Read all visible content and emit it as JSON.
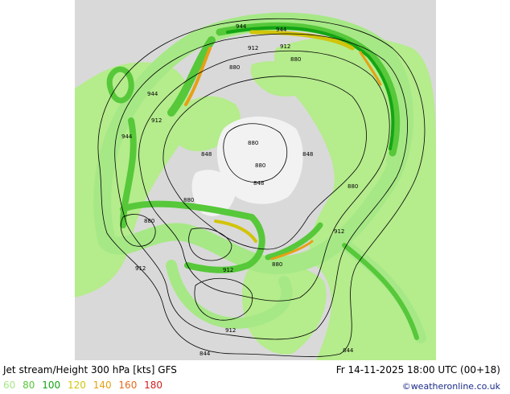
{
  "header": {
    "title": "Jet stream/Height 300 hPa [kts] GFS",
    "datetime": "Fr 14-11-2025 18:00 UTC (00+18)",
    "credit": "©weatheronline.co.uk"
  },
  "legend": [
    {
      "label": "60",
      "color": "#a6e886"
    },
    {
      "label": "80",
      "color": "#56c83a"
    },
    {
      "label": "100",
      "color": "#14a514"
    },
    {
      "label": "120",
      "color": "#d2c40a"
    },
    {
      "label": "140",
      "color": "#e6a014"
    },
    {
      "label": "160",
      "color": "#e66a1e"
    },
    {
      "label": "180",
      "color": "#d21e1e"
    }
  ],
  "contour_labels": [
    "944",
    "944",
    "912",
    "912",
    "880",
    "944",
    "912",
    "944",
    "880",
    "848",
    "848",
    "880",
    "848",
    "880",
    "880",
    "880",
    "880",
    "912",
    "912",
    "880",
    "912",
    "912",
    "844",
    "844"
  ],
  "colors": {
    "land": "#b5ec8c",
    "sea": "#d9d9d9",
    "ice": "#ffffff",
    "jet_light": "#a6e886",
    "jet_mid": "#56c83a",
    "jet_strong": "#14a514",
    "jet_yellow": "#d2c40a",
    "jet_orange": "#e6a014"
  }
}
